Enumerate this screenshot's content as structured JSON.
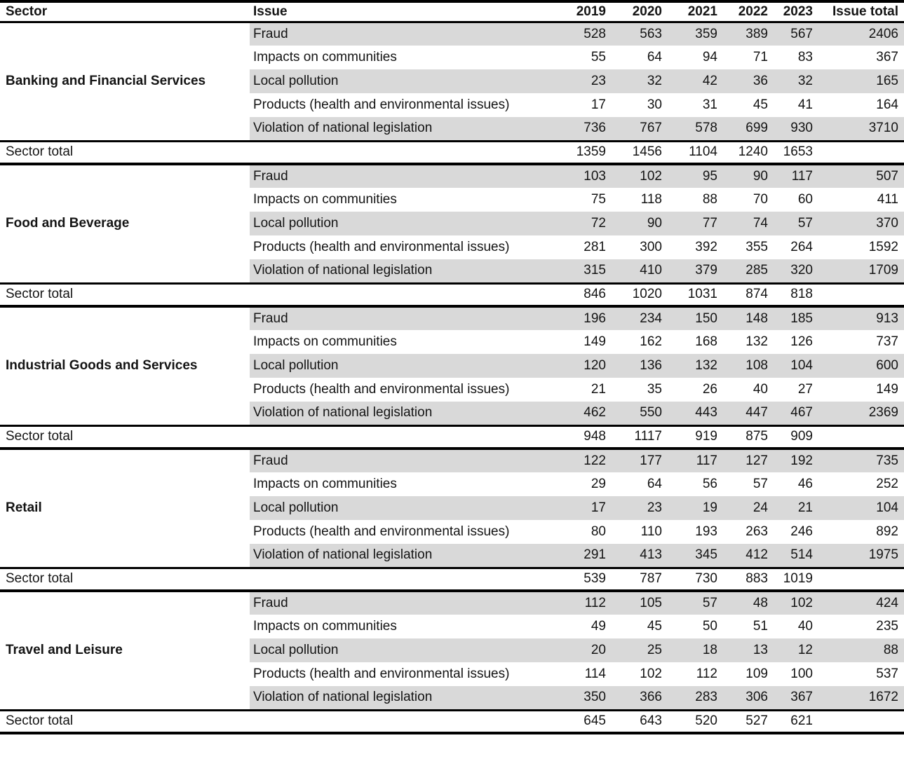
{
  "chart_data": {
    "type": "table",
    "columns": [
      "Sector",
      "Issue",
      "2019",
      "2020",
      "2021",
      "2022",
      "2023",
      "Issue total"
    ],
    "sector_total_label": "Sector total",
    "sectors": [
      {
        "name": "Banking and Financial Services",
        "issues": [
          {
            "issue": "Fraud",
            "values": [
              528,
              563,
              359,
              389,
              567
            ],
            "issue_total": 2406
          },
          {
            "issue": "Impacts on communities",
            "values": [
              55,
              64,
              94,
              71,
              83
            ],
            "issue_total": 367
          },
          {
            "issue": "Local pollution",
            "values": [
              23,
              32,
              42,
              36,
              32
            ],
            "issue_total": 165
          },
          {
            "issue": "Products (health and environmental issues)",
            "values": [
              17,
              30,
              31,
              45,
              41
            ],
            "issue_total": 164
          },
          {
            "issue": "Violation of national legislation",
            "values": [
              736,
              767,
              578,
              699,
              930
            ],
            "issue_total": 3710
          }
        ],
        "sector_total": [
          1359,
          1456,
          1104,
          1240,
          1653
        ]
      },
      {
        "name": "Food and Beverage",
        "issues": [
          {
            "issue": "Fraud",
            "values": [
              103,
              102,
              95,
              90,
              117
            ],
            "issue_total": 507
          },
          {
            "issue": "Impacts on communities",
            "values": [
              75,
              118,
              88,
              70,
              60
            ],
            "issue_total": 411
          },
          {
            "issue": "Local pollution",
            "values": [
              72,
              90,
              77,
              74,
              57
            ],
            "issue_total": 370
          },
          {
            "issue": "Products (health and environmental issues)",
            "values": [
              281,
              300,
              392,
              355,
              264
            ],
            "issue_total": 1592
          },
          {
            "issue": "Violation of national legislation",
            "values": [
              315,
              410,
              379,
              285,
              320
            ],
            "issue_total": 1709
          }
        ],
        "sector_total": [
          846,
          1020,
          1031,
          874,
          818
        ]
      },
      {
        "name": "Industrial Goods and Services",
        "issues": [
          {
            "issue": "Fraud",
            "values": [
              196,
              234,
              150,
              148,
              185
            ],
            "issue_total": 913
          },
          {
            "issue": "Impacts on communities",
            "values": [
              149,
              162,
              168,
              132,
              126
            ],
            "issue_total": 737
          },
          {
            "issue": "Local pollution",
            "values": [
              120,
              136,
              132,
              108,
              104
            ],
            "issue_total": 600
          },
          {
            "issue": "Products (health and environmental issues)",
            "values": [
              21,
              35,
              26,
              40,
              27
            ],
            "issue_total": 149
          },
          {
            "issue": "Violation of national legislation",
            "values": [
              462,
              550,
              443,
              447,
              467
            ],
            "issue_total": 2369
          }
        ],
        "sector_total": [
          948,
          1117,
          919,
          875,
          909
        ]
      },
      {
        "name": "Retail",
        "issues": [
          {
            "issue": "Fraud",
            "values": [
              122,
              177,
              117,
              127,
              192
            ],
            "issue_total": 735
          },
          {
            "issue": "Impacts on communities",
            "values": [
              29,
              64,
              56,
              57,
              46
            ],
            "issue_total": 252
          },
          {
            "issue": "Local pollution",
            "values": [
              17,
              23,
              19,
              24,
              21
            ],
            "issue_total": 104
          },
          {
            "issue": "Products (health and environmental issues)",
            "values": [
              80,
              110,
              193,
              263,
              246
            ],
            "issue_total": 892
          },
          {
            "issue": "Violation of national legislation",
            "values": [
              291,
              413,
              345,
              412,
              514
            ],
            "issue_total": 1975
          }
        ],
        "sector_total": [
          539,
          787,
          730,
          883,
          1019
        ]
      },
      {
        "name": "Travel and Leisure",
        "issues": [
          {
            "issue": "Fraud",
            "values": [
              112,
              105,
              57,
              48,
              102
            ],
            "issue_total": 424
          },
          {
            "issue": "Impacts on communities",
            "values": [
              49,
              45,
              50,
              51,
              40
            ],
            "issue_total": 235
          },
          {
            "issue": "Local pollution",
            "values": [
              20,
              25,
              18,
              13,
              12
            ],
            "issue_total": 88
          },
          {
            "issue": "Products (health and environmental issues)",
            "values": [
              114,
              102,
              112,
              109,
              100
            ],
            "issue_total": 537
          },
          {
            "issue": "Violation of national legislation",
            "values": [
              350,
              366,
              283,
              306,
              367
            ],
            "issue_total": 1672
          }
        ],
        "sector_total": [
          645,
          643,
          520,
          527,
          621
        ]
      }
    ]
  },
  "colors": {
    "row_shade": "#d9d9d9",
    "rule": "#000000",
    "text": "#141414",
    "background": "#ffffff"
  }
}
